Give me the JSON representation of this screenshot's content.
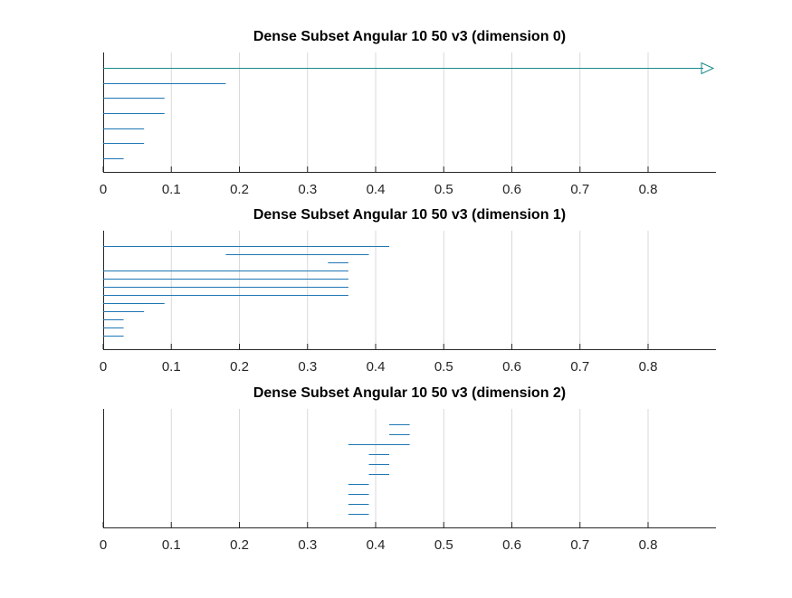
{
  "colors": {
    "bar": "#1f77b4",
    "infinite": "#1a8a8a",
    "grid": "#d9d9d9",
    "axis": "#262626",
    "text": "#262626"
  },
  "chart_data": [
    {
      "type": "barcode",
      "title": "Dense Subset Angular 10 50 v3 (dimension 0)",
      "xlim": [
        0,
        0.9
      ],
      "xticks": [
        0,
        0.1,
        0.2,
        0.3,
        0.4,
        0.5,
        0.6,
        0.7,
        0.8
      ],
      "xtick_labels": [
        "0",
        "0.1",
        "0.2",
        "0.3",
        "0.4",
        "0.5",
        "0.6",
        "0.7",
        "0.8"
      ],
      "grid": true,
      "intervals": [
        {
          "birth": 0,
          "death": null
        },
        {
          "birth": 0,
          "death": 0.18
        },
        {
          "birth": 0,
          "death": 0.09
        },
        {
          "birth": 0,
          "death": 0.09
        },
        {
          "birth": 0,
          "death": 0.06
        },
        {
          "birth": 0,
          "death": 0.06
        },
        {
          "birth": 0,
          "death": 0.03
        }
      ]
    },
    {
      "type": "barcode",
      "title": "Dense Subset Angular 10 50 v3 (dimension 1)",
      "xlim": [
        0,
        0.9
      ],
      "xticks": [
        0,
        0.1,
        0.2,
        0.3,
        0.4,
        0.5,
        0.6,
        0.7,
        0.8
      ],
      "xtick_labels": [
        "0",
        "0.1",
        "0.2",
        "0.3",
        "0.4",
        "0.5",
        "0.6",
        "0.7",
        "0.8"
      ],
      "grid": true,
      "intervals": [
        {
          "birth": 0,
          "death": 0.42
        },
        {
          "birth": 0.18,
          "death": 0.39
        },
        {
          "birth": 0.33,
          "death": 0.36
        },
        {
          "birth": 0,
          "death": 0.36
        },
        {
          "birth": 0,
          "death": 0.36
        },
        {
          "birth": 0,
          "death": 0.36
        },
        {
          "birth": 0,
          "death": 0.36
        },
        {
          "birth": 0,
          "death": 0.09
        },
        {
          "birth": 0,
          "death": 0.06
        },
        {
          "birth": 0,
          "death": 0.03
        },
        {
          "birth": 0,
          "death": 0.03
        },
        {
          "birth": 0,
          "death": 0.03
        }
      ]
    },
    {
      "type": "barcode",
      "title": "Dense Subset Angular 10 50 v3 (dimension 2)",
      "xlim": [
        0,
        0.9
      ],
      "xticks": [
        0,
        0.1,
        0.2,
        0.3,
        0.4,
        0.5,
        0.6,
        0.7,
        0.8
      ],
      "xtick_labels": [
        "0",
        "0.1",
        "0.2",
        "0.3",
        "0.4",
        "0.5",
        "0.6",
        "0.7",
        "0.8"
      ],
      "grid": true,
      "intervals": [
        {
          "birth": 0.42,
          "death": 0.45
        },
        {
          "birth": 0.42,
          "death": 0.45
        },
        {
          "birth": 0.36,
          "death": 0.45
        },
        {
          "birth": 0.39,
          "death": 0.42
        },
        {
          "birth": 0.39,
          "death": 0.42
        },
        {
          "birth": 0.39,
          "death": 0.42
        },
        {
          "birth": 0.36,
          "death": 0.39
        },
        {
          "birth": 0.36,
          "death": 0.39
        },
        {
          "birth": 0.36,
          "death": 0.39
        },
        {
          "birth": 0.36,
          "death": 0.39
        }
      ]
    }
  ]
}
